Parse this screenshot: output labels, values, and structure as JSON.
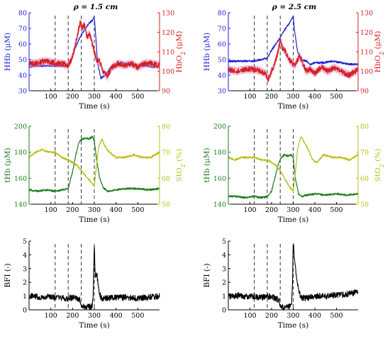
{
  "figure": {
    "panel_titles": [
      "ρ = 1.5 cm",
      "ρ = 2.5 cm"
    ],
    "colors": {
      "hhb": "#1f1fd6",
      "hbo2": "#d61f1f",
      "hbo2_band": "#e39ad6",
      "thb": "#1e7d1e",
      "sto2": "#b9c11c",
      "bfi": "#000000",
      "marker": "#333333"
    }
  },
  "chart_data": [
    {
      "type": "line",
      "panel": "top-left",
      "title": "ρ = 1.5 cm",
      "xlabel": "Time (s)",
      "ylabel": "HHb (μM)",
      "ylabel_right": "HbO2 (μM)",
      "xlim": [
        0,
        600
      ],
      "ylim": [
        30,
        80
      ],
      "ylim_right": [
        90,
        130
      ],
      "xticks": [
        100,
        200,
        300,
        400,
        500
      ],
      "yticks": [
        30,
        40,
        50,
        60,
        70,
        80
      ],
      "yticks_right": [
        90,
        100,
        110,
        120,
        130
      ],
      "markers_x": [
        120,
        180,
        240,
        300
      ],
      "series": [
        {
          "name": "HHb",
          "axis": "left",
          "color": "#1f1fd6",
          "x": [
            0,
            30,
            60,
            90,
            120,
            150,
            180,
            200,
            215,
            230,
            245,
            260,
            275,
            290,
            300,
            305,
            315,
            330,
            350,
            380,
            420,
            460,
            500,
            540,
            570,
            600
          ],
          "y": [
            45,
            46,
            46,
            46,
            46,
            46,
            46,
            52,
            58,
            63,
            67,
            70,
            73,
            75,
            77,
            68,
            48,
            38,
            40,
            46,
            48,
            47,
            46,
            46,
            45,
            46
          ]
        },
        {
          "name": "HbO2",
          "axis": "right",
          "color": "#d61f1f",
          "x": [
            0,
            30,
            60,
            90,
            120,
            150,
            180,
            195,
            210,
            225,
            235,
            245,
            255,
            265,
            280,
            295,
            310,
            325,
            340,
            360,
            380,
            410,
            440,
            470,
            500,
            530,
            560,
            600
          ],
          "y": [
            104,
            104,
            105,
            105,
            104,
            104,
            103,
            106,
            112,
            120,
            125,
            122,
            124,
            118,
            119,
            112,
            106,
            105,
            100,
            97,
            102,
            104,
            103,
            104,
            102,
            104,
            104,
            103
          ]
        }
      ]
    },
    {
      "type": "line",
      "panel": "top-right",
      "title": "ρ = 2.5 cm",
      "xlabel": "Time (s)",
      "ylabel": "HHb (μM)",
      "ylabel_right": "HbO2 (μM)",
      "xlim": [
        0,
        600
      ],
      "ylim": [
        30,
        80
      ],
      "ylim_right": [
        90,
        130
      ],
      "xticks": [
        100,
        200,
        300,
        400,
        500
      ],
      "yticks": [
        30,
        40,
        50,
        60,
        70,
        80
      ],
      "yticks_right": [
        90,
        100,
        110,
        120,
        130
      ],
      "markers_x": [
        120,
        180,
        240,
        300
      ],
      "series": [
        {
          "name": "HHb",
          "axis": "left",
          "color": "#1f1fd6",
          "x": [
            0,
            40,
            80,
            120,
            150,
            180,
            200,
            220,
            240,
            255,
            270,
            285,
            300,
            305,
            320,
            340,
            360,
            380,
            400,
            440,
            480,
            520,
            560,
            600
          ],
          "y": [
            49,
            49,
            49,
            49,
            50,
            51,
            56,
            60,
            64,
            68,
            71,
            74,
            78,
            70,
            55,
            50,
            49,
            47,
            48,
            48,
            49,
            48,
            47,
            47
          ]
        },
        {
          "name": "HbO2",
          "axis": "right",
          "color": "#d61f1f",
          "x": [
            0,
            40,
            80,
            120,
            150,
            170,
            185,
            200,
            215,
            230,
            240,
            250,
            265,
            280,
            295,
            310,
            330,
            345,
            360,
            380,
            400,
            430,
            460,
            490,
            520,
            560,
            600
          ],
          "y": [
            101,
            100,
            101,
            101,
            100,
            99,
            96,
            100,
            104,
            110,
            116,
            112,
            110,
            106,
            104,
            103,
            108,
            104,
            100,
            101,
            99,
            102,
            100,
            102,
            100,
            98,
            101
          ]
        }
      ]
    },
    {
      "type": "line",
      "panel": "middle-left",
      "xlabel": "Time (s)",
      "ylabel": "tHb (μM)",
      "ylabel_right": "StO2 (%)",
      "xlim": [
        0,
        600
      ],
      "ylim": [
        140,
        200
      ],
      "ylim_right": [
        50,
        80
      ],
      "xticks": [
        100,
        200,
        300,
        400,
        500
      ],
      "yticks": [
        140,
        160,
        180,
        200
      ],
      "yticks_right": [
        50,
        60,
        70,
        80
      ],
      "markers_x": [
        120,
        180,
        240,
        300
      ],
      "series": [
        {
          "name": "tHb",
          "axis": "left",
          "color": "#1e7d1e",
          "x": [
            0,
            40,
            80,
            120,
            150,
            180,
            200,
            215,
            230,
            245,
            260,
            275,
            290,
            300,
            310,
            325,
            340,
            360,
            400,
            450,
            500,
            550,
            600
          ],
          "y": [
            151,
            150,
            151,
            150,
            151,
            152,
            165,
            178,
            188,
            190,
            191,
            190,
            192,
            189,
            175,
            160,
            153,
            150,
            151,
            152,
            152,
            151,
            152
          ]
        },
        {
          "name": "StO2",
          "axis": "right",
          "color": "#b9c11c",
          "x": [
            0,
            30,
            60,
            90,
            120,
            150,
            180,
            200,
            220,
            240,
            260,
            280,
            300,
            310,
            320,
            335,
            350,
            370,
            400,
            440,
            480,
            520,
            560,
            600
          ],
          "y": [
            68,
            70,
            71,
            70,
            70,
            68,
            67,
            66,
            65,
            63,
            61,
            59,
            57,
            65,
            72,
            75,
            72,
            70,
            68,
            68,
            69,
            68,
            68,
            70
          ]
        }
      ]
    },
    {
      "type": "line",
      "panel": "middle-right",
      "xlabel": "Time (s)",
      "ylabel": "tHb (μM)",
      "ylabel_right": "StO2 (%)",
      "xlim": [
        0,
        600
      ],
      "ylim": [
        140,
        200
      ],
      "ylim_right": [
        50,
        80
      ],
      "xticks": [
        100,
        200,
        300,
        400,
        500
      ],
      "yticks": [
        140,
        160,
        180,
        200
      ],
      "yticks_right": [
        50,
        60,
        70,
        80
      ],
      "markers_x": [
        120,
        180,
        240,
        300
      ],
      "series": [
        {
          "name": "tHb",
          "axis": "left",
          "color": "#1e7d1e",
          "x": [
            0,
            40,
            80,
            120,
            150,
            180,
            200,
            215,
            230,
            245,
            260,
            275,
            290,
            300,
            310,
            325,
            340,
            360,
            400,
            450,
            500,
            550,
            600
          ],
          "y": [
            146,
            146,
            145,
            146,
            145,
            146,
            150,
            160,
            170,
            176,
            178,
            177,
            178,
            176,
            160,
            148,
            146,
            147,
            148,
            147,
            148,
            147,
            148
          ]
        },
        {
          "name": "StO2",
          "axis": "right",
          "color": "#b9c11c",
          "x": [
            0,
            30,
            60,
            90,
            120,
            150,
            180,
            200,
            220,
            240,
            260,
            280,
            300,
            310,
            320,
            335,
            350,
            370,
            390,
            410,
            440,
            480,
            520,
            560,
            600
          ],
          "y": [
            68,
            67,
            68,
            68,
            68,
            67,
            67,
            66,
            65,
            63,
            60,
            57,
            55,
            62,
            71,
            76,
            74,
            71,
            67,
            66,
            69,
            68,
            68,
            67,
            69
          ]
        }
      ]
    },
    {
      "type": "line",
      "panel": "bottom-left",
      "xlabel": "Time (s)",
      "ylabel": "BFI (-)",
      "xlim": [
        0,
        600
      ],
      "ylim": [
        0,
        5
      ],
      "xticks": [
        100,
        200,
        300,
        400,
        500
      ],
      "yticks": [
        0,
        1,
        2,
        3,
        4,
        5
      ],
      "markers_x": [
        120,
        180,
        240,
        300
      ],
      "series": [
        {
          "name": "BFI",
          "axis": "left",
          "color": "#000000",
          "x": [
            0,
            30,
            60,
            90,
            120,
            150,
            180,
            200,
            220,
            235,
            240,
            260,
            280,
            290,
            295,
            300,
            303,
            307,
            312,
            318,
            325,
            335,
            350,
            380,
            420,
            460,
            500,
            540,
            570,
            600
          ],
          "y": [
            1.0,
            1.0,
            0.9,
            0.95,
            0.9,
            0.85,
            0.8,
            0.9,
            0.8,
            0.7,
            0.3,
            0.2,
            0.25,
            0.3,
            1.2,
            4.8,
            3.0,
            2.4,
            2.6,
            1.8,
            1.1,
            0.8,
            0.85,
            0.85,
            0.9,
            0.9,
            0.85,
            0.9,
            0.95,
            1.0
          ]
        }
      ]
    },
    {
      "type": "line",
      "panel": "bottom-right",
      "xlabel": "Time (s)",
      "ylabel": "BFI (-)",
      "xlim": [
        0,
        600
      ],
      "ylim": [
        0,
        5
      ],
      "xticks": [
        100,
        200,
        300,
        400,
        500
      ],
      "yticks": [
        0,
        1,
        2,
        3,
        4,
        5
      ],
      "markers_x": [
        120,
        180,
        240,
        300
      ],
      "series": [
        {
          "name": "BFI",
          "axis": "left",
          "color": "#000000",
          "x": [
            0,
            30,
            60,
            90,
            120,
            150,
            180,
            200,
            220,
            235,
            240,
            260,
            280,
            292,
            297,
            300,
            305,
            310,
            318,
            325,
            335,
            350,
            380,
            420,
            460,
            500,
            540,
            570,
            600
          ],
          "y": [
            1.0,
            1.0,
            1.05,
            0.95,
            0.95,
            0.9,
            0.95,
            1.0,
            0.8,
            0.7,
            0.2,
            0.15,
            0.2,
            0.3,
            2.0,
            5.0,
            4.0,
            3.0,
            2.2,
            1.5,
            0.9,
            0.85,
            0.9,
            1.0,
            1.0,
            1.1,
            1.1,
            1.2,
            1.3
          ]
        }
      ]
    }
  ]
}
